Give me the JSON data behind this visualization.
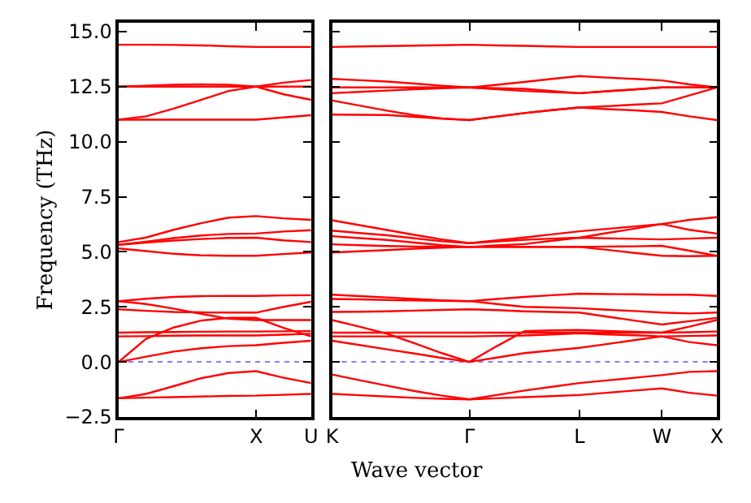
{
  "chart_data": [
    {
      "type": "line",
      "ylabel": "Frequency (THz)",
      "categories": [
        "Γ",
        null,
        null,
        null,
        null,
        "X",
        null,
        "U"
      ],
      "ylim": [
        -2.5,
        15.4
      ],
      "yticks": [
        {
          "value": -2.5,
          "label": "−2.5"
        },
        {
          "value": 0,
          "label": "0.0"
        },
        {
          "value": 2.5,
          "label": "2.5"
        },
        {
          "value": 5,
          "label": "5.0"
        },
        {
          "value": 7.5,
          "label": "7.5"
        },
        {
          "value": 10,
          "label": "10.0"
        },
        {
          "value": 12.5,
          "label": "12.5"
        },
        {
          "value": 15,
          "label": "15.0"
        }
      ],
      "grid": false,
      "line_style": "solid",
      "ref_lines": [
        {
          "axis": "y",
          "value": 0,
          "color": "#7f7fff",
          "line_style": "dotted"
        }
      ],
      "series": [
        {
          "color": "#ff0000",
          "values": [
            14.4,
            14.4,
            14.39,
            14.37,
            14.33,
            14.3,
            14.3,
            14.3
          ]
        },
        {
          "color": "#ff0000",
          "values": [
            12.5,
            12.54,
            12.58,
            12.6,
            12.58,
            12.5,
            12.15,
            11.9
          ]
        },
        {
          "color": "#ff0000",
          "values": [
            12.5,
            12.5,
            12.5,
            12.5,
            12.5,
            12.5,
            12.5,
            12.5
          ]
        },
        {
          "color": "#ff0000",
          "values": [
            11.0,
            11.15,
            11.5,
            11.9,
            12.3,
            12.5,
            12.68,
            12.8
          ]
        },
        {
          "color": "#ff0000",
          "values": [
            11.0,
            11.0,
            11.0,
            11.0,
            11.0,
            11.0,
            11.1,
            11.2
          ]
        },
        {
          "color": "#ff0000",
          "values": [
            5.44,
            5.65,
            6.0,
            6.3,
            6.55,
            6.62,
            6.52,
            6.45
          ]
        },
        {
          "color": "#ff0000",
          "values": [
            5.32,
            5.46,
            5.62,
            5.74,
            5.81,
            5.83,
            5.92,
            5.98
          ]
        },
        {
          "color": "#ff0000",
          "values": [
            5.32,
            5.42,
            5.51,
            5.58,
            5.63,
            5.64,
            5.52,
            5.44
          ]
        },
        {
          "color": "#ff0000",
          "values": [
            5.15,
            5.03,
            4.91,
            4.84,
            4.82,
            4.82,
            4.9,
            4.97
          ]
        },
        {
          "color": "#ff0000",
          "values": [
            2.76,
            2.87,
            2.95,
            2.99,
            3.0,
            3.0,
            3.02,
            3.03
          ]
        },
        {
          "color": "#ff0000",
          "values": [
            2.39,
            2.32,
            2.27,
            2.25,
            2.24,
            2.24,
            2.5,
            2.73
          ]
        },
        {
          "color": "#ff0000",
          "values": [
            2.76,
            2.63,
            2.42,
            2.18,
            1.96,
            1.9,
            1.9,
            1.9
          ]
        },
        {
          "color": "#ff0000",
          "values": [
            1.33,
            1.35,
            1.36,
            1.37,
            1.38,
            1.38,
            1.39,
            1.4
          ]
        },
        {
          "color": "#ff0000",
          "values": [
            1.16,
            1.17,
            1.19,
            1.2,
            1.2,
            1.2,
            1.24,
            1.28
          ]
        },
        {
          "color": "#ff0000",
          "values": [
            0,
            1.05,
            1.56,
            1.88,
            2.0,
            2.0,
            1.55,
            1.16
          ]
        },
        {
          "color": "#ff0000",
          "values": [
            0,
            0.24,
            0.47,
            0.62,
            0.72,
            0.76,
            0.87,
            0.96
          ]
        },
        {
          "color": "#ff0000",
          "values": [
            -1.65,
            -1.45,
            -1.1,
            -0.74,
            -0.5,
            -0.42,
            -0.72,
            -0.96
          ]
        },
        {
          "color": "#ff0000",
          "values": [
            -1.65,
            -1.62,
            -1.6,
            -1.57,
            -1.54,
            -1.53,
            -1.49,
            -1.45
          ]
        }
      ]
    },
    {
      "type": "line",
      "xlabel": "Wave vector",
      "categories": [
        "K",
        null,
        null,
        null,
        null,
        "Γ",
        null,
        null,
        null,
        "L",
        null,
        null,
        "W",
        null,
        "X"
      ],
      "ylim": [
        -2.5,
        15.4
      ],
      "yticks": [
        {
          "value": -2.5,
          "label": null
        },
        {
          "value": 0,
          "label": null
        },
        {
          "value": 2.5,
          "label": null
        },
        {
          "value": 5,
          "label": null
        },
        {
          "value": 7.5,
          "label": null
        },
        {
          "value": 10,
          "label": null
        },
        {
          "value": 12.5,
          "label": null
        },
        {
          "value": 15,
          "label": null
        }
      ],
      "tick_labels": "x",
      "grid": false,
      "line_style": "solid",
      "ref_lines": [
        {
          "axis": "y",
          "value": 0,
          "color": "#7f7fff",
          "line_style": "dotted"
        }
      ],
      "series": [
        {
          "color": "#ff0000",
          "values": [
            14.3,
            14.32,
            14.34,
            14.36,
            14.38,
            14.4,
            14.37,
            14.35,
            14.32,
            14.3,
            14.3,
            14.3,
            14.3,
            14.3,
            14.3
          ]
        },
        {
          "color": "#ff0000",
          "values": [
            12.85,
            12.79,
            12.73,
            12.64,
            12.54,
            12.46,
            12.58,
            12.71,
            12.85,
            12.98,
            12.91,
            12.85,
            12.78,
            12.6,
            12.46
          ]
        },
        {
          "color": "#ff0000",
          "values": [
            12.46,
            12.46,
            12.46,
            12.46,
            12.46,
            12.46,
            12.38,
            12.3,
            12.25,
            12.2,
            12.29,
            12.37,
            12.46,
            12.46,
            12.46
          ]
        },
        {
          "color": "#ff0000",
          "values": [
            12.2,
            12.26,
            12.32,
            12.38,
            12.42,
            12.46,
            12.43,
            12.4,
            12.3,
            12.2,
            12.29,
            12.37,
            12.46,
            12.46,
            12.46
          ]
        },
        {
          "color": "#ff0000",
          "values": [
            11.87,
            11.64,
            11.41,
            11.2,
            11.06,
            10.98,
            11.14,
            11.3,
            11.43,
            11.55,
            11.61,
            11.68,
            11.74,
            12.1,
            12.46
          ]
        },
        {
          "color": "#ff0000",
          "values": [
            11.23,
            11.22,
            11.21,
            11.13,
            11.04,
            10.98,
            11.14,
            11.3,
            11.43,
            11.55,
            11.48,
            11.42,
            11.35,
            11.15,
            10.98
          ]
        },
        {
          "color": "#ff0000",
          "values": [
            6.43,
            6.21,
            5.99,
            5.77,
            5.56,
            5.39,
            5.52,
            5.65,
            5.79,
            5.93,
            6.04,
            6.15,
            6.26,
            6.45,
            6.57
          ]
        },
        {
          "color": "#ff0000",
          "values": [
            5.96,
            5.85,
            5.75,
            5.61,
            5.48,
            5.39,
            5.47,
            5.55,
            5.6,
            5.64,
            5.85,
            6.05,
            6.26,
            6.0,
            5.83
          ]
        },
        {
          "color": "#ff0000",
          "values": [
            5.71,
            5.62,
            5.54,
            5.42,
            5.3,
            5.22,
            5.29,
            5.35,
            5.5,
            5.64,
            5.61,
            5.59,
            5.56,
            5.6,
            5.64
          ]
        },
        {
          "color": "#ff0000",
          "values": [
            5.34,
            5.3,
            5.26,
            5.24,
            5.23,
            5.22,
            5.22,
            5.22,
            5.22,
            5.22,
            5.24,
            5.25,
            5.27,
            5.05,
            4.82
          ]
        },
        {
          "color": "#ff0000",
          "values": [
            4.97,
            5.02,
            5.08,
            5.14,
            5.19,
            5.22,
            5.22,
            5.22,
            5.22,
            5.22,
            5.09,
            4.95,
            4.82,
            4.8,
            4.82
          ]
        },
        {
          "color": "#ff0000",
          "values": [
            3.05,
            2.99,
            2.93,
            2.86,
            2.8,
            2.76,
            2.86,
            2.95,
            3.03,
            3.1,
            3.08,
            3.07,
            3.05,
            3.05,
            3.0
          ]
        },
        {
          "color": "#ff0000",
          "values": [
            2.86,
            2.84,
            2.81,
            2.79,
            2.77,
            2.76,
            2.63,
            2.5,
            2.47,
            2.44,
            2.37,
            2.31,
            2.24,
            2.2,
            2.24
          ]
        },
        {
          "color": "#ff0000",
          "values": [
            2.27,
            2.28,
            2.3,
            2.33,
            2.36,
            2.39,
            2.35,
            2.3,
            2.27,
            2.24,
            2.06,
            1.88,
            1.7,
            1.85,
            2.0
          ]
        },
        {
          "color": "#ff0000",
          "values": [
            1.9,
            1.6,
            1.28,
            0.85,
            0.4,
            0,
            0.72,
            1.4,
            1.43,
            1.45,
            1.41,
            1.37,
            1.33,
            1.6,
            1.9
          ]
        },
        {
          "color": "#ff0000",
          "values": [
            1.33,
            1.33,
            1.33,
            1.33,
            1.33,
            1.33,
            1.33,
            1.33,
            1.33,
            1.33,
            1.33,
            1.33,
            1.33,
            1.35,
            1.38
          ]
        },
        {
          "color": "#ff0000",
          "values": [
            1.16,
            1.16,
            1.16,
            1.16,
            1.16,
            1.16,
            1.18,
            1.2,
            1.25,
            1.3,
            1.25,
            1.21,
            1.16,
            1.18,
            1.2
          ]
        },
        {
          "color": "#ff0000",
          "values": [
            0.96,
            0.77,
            0.57,
            0.38,
            0.18,
            0,
            0.2,
            0.4,
            0.52,
            0.64,
            0.81,
            0.99,
            1.16,
            0.9,
            0.76
          ]
        },
        {
          "color": "#ff0000",
          "values": [
            -0.57,
            -0.83,
            -1.08,
            -1.32,
            -1.53,
            -1.7,
            -1.5,
            -1.3,
            -1.13,
            -0.96,
            -0.84,
            -0.72,
            -0.6,
            -0.45,
            -0.42
          ]
        },
        {
          "color": "#ff0000",
          "values": [
            -1.45,
            -1.51,
            -1.57,
            -1.63,
            -1.67,
            -1.7,
            -1.65,
            -1.6,
            -1.55,
            -1.5,
            -1.4,
            -1.3,
            -1.2,
            -1.4,
            -1.53
          ]
        }
      ]
    }
  ]
}
